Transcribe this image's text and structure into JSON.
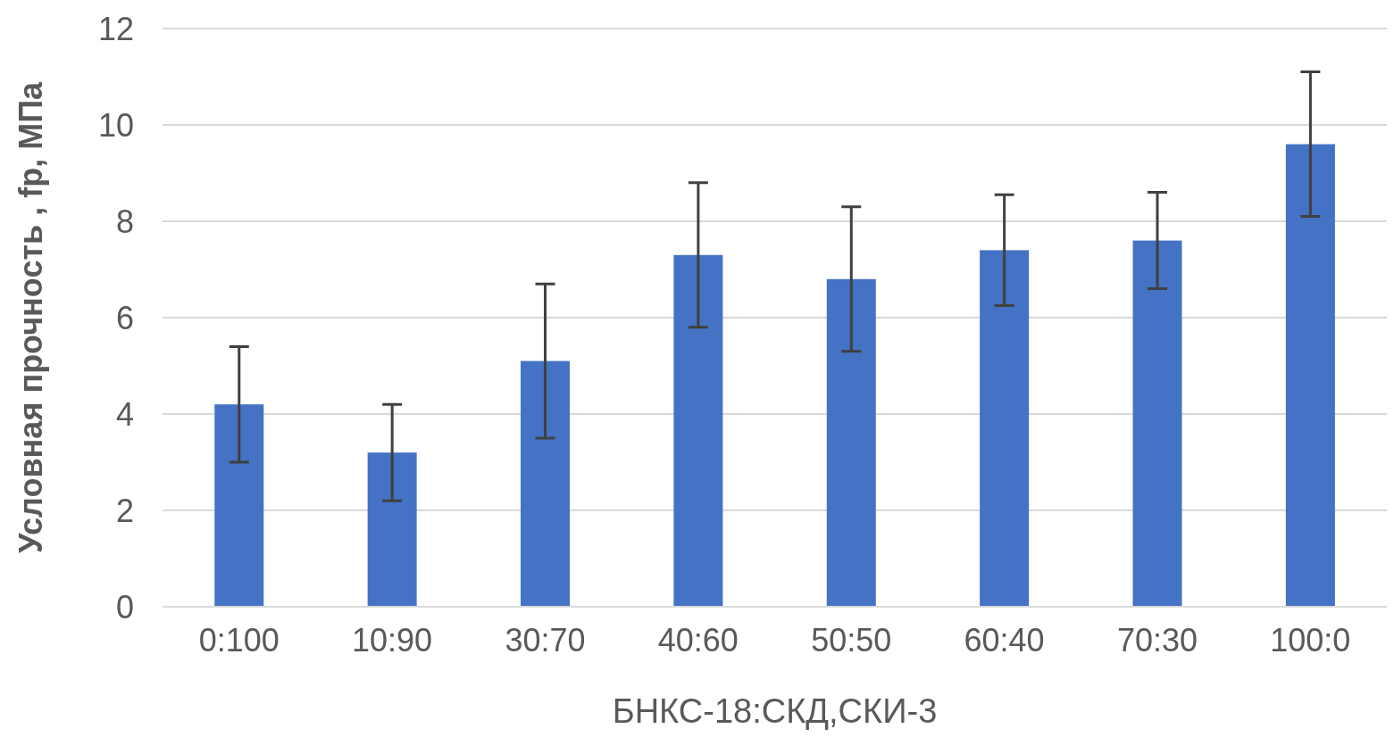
{
  "chart_data": {
    "type": "bar",
    "xlabel": "БНКС-18:СКД,СКИ-3",
    "ylabel": "Условная прочность , fp, МПа",
    "categories": [
      "0:100",
      "10:90",
      "30:70",
      "40:60",
      "50:50",
      "60:40",
      "70:30",
      "100:0"
    ],
    "values": [
      4.2,
      3.2,
      5.1,
      7.3,
      6.8,
      7.4,
      7.6,
      9.6
    ],
    "errors": [
      1.2,
      1.0,
      1.6,
      1.5,
      1.5,
      1.15,
      1.0,
      1.5
    ],
    "color": "#4472c4",
    "ylim": [
      0,
      12
    ],
    "yticks": [
      0,
      2,
      4,
      6,
      8,
      10,
      12
    ],
    "grid": "y"
  }
}
